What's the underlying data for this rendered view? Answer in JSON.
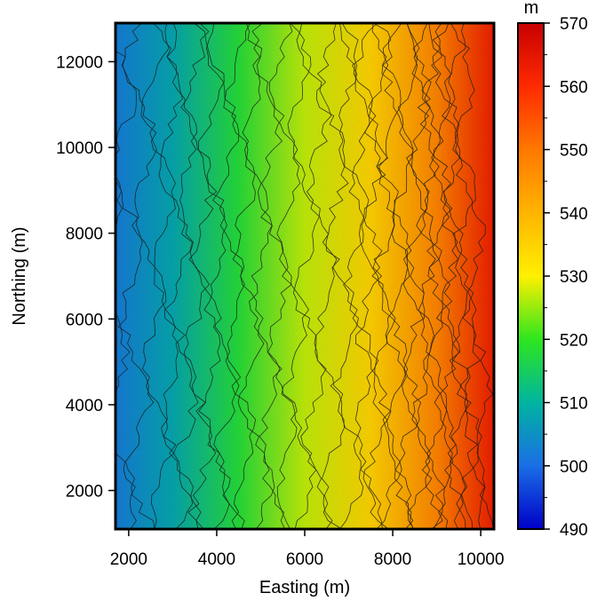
{
  "chart_data": {
    "type": "heatmap",
    "title": "",
    "xlabel": "Easting (m)",
    "ylabel": "Northing (m)",
    "xlim": [
      1700,
      10300
    ],
    "ylim": [
      1100,
      12900
    ],
    "x_ticks": [
      2000,
      4000,
      6000,
      8000,
      10000
    ],
    "y_ticks": [
      2000,
      4000,
      6000,
      8000,
      10000,
      12000
    ],
    "colorbar": {
      "unit": "m",
      "range": [
        490,
        570
      ],
      "ticks": [
        490,
        500,
        510,
        520,
        530,
        540,
        550,
        560,
        570
      ],
      "colors": [
        {
          "value": 490,
          "color": "#0000c8"
        },
        {
          "value": 500,
          "color": "#1a6ee6"
        },
        {
          "value": 510,
          "color": "#00b4a0"
        },
        {
          "value": 520,
          "color": "#2ee61e"
        },
        {
          "value": 530,
          "color": "#fff000"
        },
        {
          "value": 540,
          "color": "#ffb400"
        },
        {
          "value": 550,
          "color": "#ff7800"
        },
        {
          "value": 560,
          "color": "#ff2a00"
        },
        {
          "value": 570,
          "color": "#c80000"
        }
      ]
    },
    "surface": {
      "description_of_trend": "elevation rises from west (~500 m) to east (~565 m)",
      "values_by_easting": [
        {
          "easting": 1700,
          "elevation": 502
        },
        {
          "easting": 3000,
          "elevation": 508
        },
        {
          "easting": 4500,
          "elevation": 518
        },
        {
          "easting": 6000,
          "elevation": 527
        },
        {
          "easting": 7500,
          "elevation": 535
        },
        {
          "easting": 9000,
          "elevation": 548
        },
        {
          "easting": 10300,
          "elevation": 563
        }
      ]
    },
    "contour_interval": 5
  }
}
